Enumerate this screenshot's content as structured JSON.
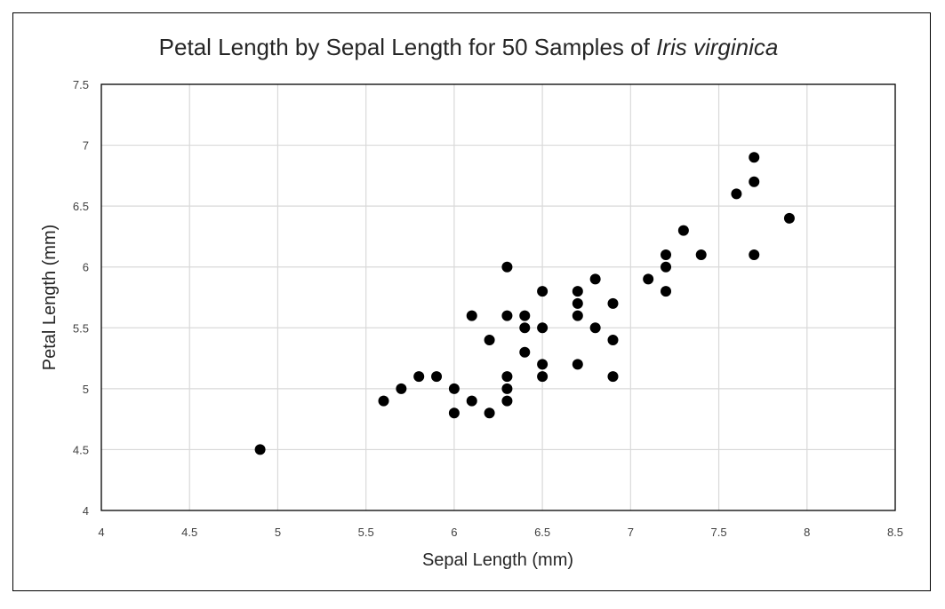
{
  "chart_data": {
    "type": "scatter",
    "title": {
      "prefix": "Petal Length by Sepal Length for 50 Samples of ",
      "italic": "Iris virginica"
    },
    "xlabel": "Sepal Length (mm)",
    "ylabel": "Petal Length (mm)",
    "xlim": [
      4,
      8.5
    ],
    "ylim": [
      4,
      7.5
    ],
    "xticks": [
      "4",
      "4.5",
      "5",
      "5.5",
      "6",
      "6.5",
      "7",
      "7.5",
      "8",
      "8.5"
    ],
    "yticks": [
      "4",
      "4.5",
      "5",
      "5.5",
      "6",
      "6.5",
      "7",
      "7.5"
    ],
    "grid": true,
    "marker_color": "#000000",
    "grid_color": "#d9d9d9",
    "series": [
      {
        "points": [
          [
            4.9,
            4.5
          ],
          [
            5.6,
            4.9
          ],
          [
            5.7,
            5.0
          ],
          [
            5.8,
            5.1
          ],
          [
            5.9,
            5.1
          ],
          [
            6.0,
            5.0
          ],
          [
            6.0,
            4.8
          ],
          [
            6.1,
            5.6
          ],
          [
            6.1,
            4.9
          ],
          [
            6.2,
            5.4
          ],
          [
            6.2,
            4.8
          ],
          [
            6.3,
            6.0
          ],
          [
            6.3,
            5.6
          ],
          [
            6.3,
            5.1
          ],
          [
            6.3,
            5.0
          ],
          [
            6.3,
            4.9
          ],
          [
            6.4,
            5.6
          ],
          [
            6.4,
            5.5
          ],
          [
            6.4,
            5.3
          ],
          [
            6.5,
            5.8
          ],
          [
            6.5,
            5.5
          ],
          [
            6.5,
            5.2
          ],
          [
            6.5,
            5.1
          ],
          [
            6.7,
            5.8
          ],
          [
            6.7,
            5.7
          ],
          [
            6.7,
            5.6
          ],
          [
            6.7,
            5.2
          ],
          [
            6.8,
            5.9
          ],
          [
            6.8,
            5.5
          ],
          [
            6.9,
            5.7
          ],
          [
            6.9,
            5.4
          ],
          [
            6.9,
            5.1
          ],
          [
            7.1,
            5.9
          ],
          [
            7.2,
            6.1
          ],
          [
            7.2,
            6.0
          ],
          [
            7.2,
            5.8
          ],
          [
            7.3,
            6.3
          ],
          [
            7.4,
            6.1
          ],
          [
            7.6,
            6.6
          ],
          [
            7.7,
            6.9
          ],
          [
            7.7,
            6.7
          ],
          [
            7.7,
            6.1
          ],
          [
            7.9,
            6.4
          ]
        ]
      }
    ]
  }
}
